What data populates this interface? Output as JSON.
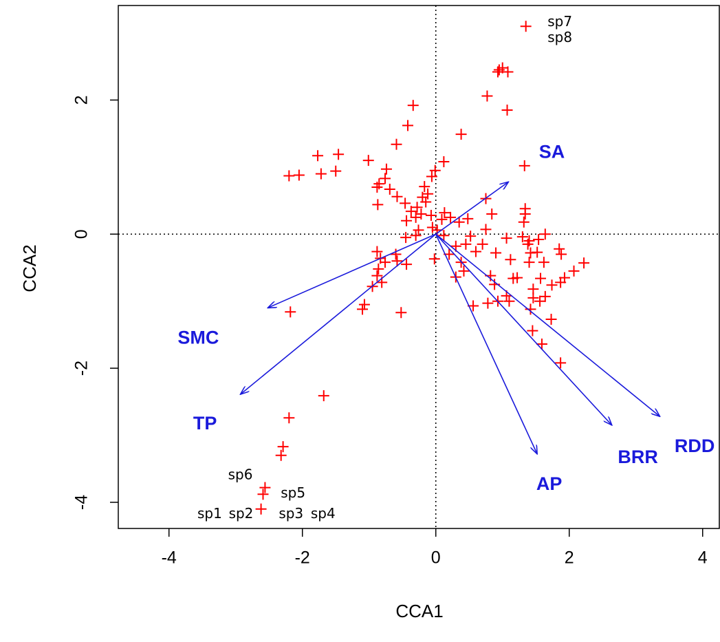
{
  "chart_data": {
    "type": "biplot",
    "x_label": "CCA1",
    "y_label": "CCA2",
    "xlim": [
      -4.76,
      4.25
    ],
    "ylim": [
      -4.39,
      3.41
    ],
    "xticks": [
      -4,
      -2,
      0,
      2,
      4
    ],
    "yticks": [
      -4,
      -2,
      0,
      2
    ],
    "zero_lines": true,
    "point_color": "#ff0000",
    "arrow_color": "#1a1adb",
    "points": {
      "x": [
        0.93,
        1.0,
        1.08,
        0.95,
        0.77,
        1.07,
        -0.34,
        -0.42,
        0.38,
        1.33,
        -0.59,
        -1.77,
        -1.46,
        -1.01,
        -1.5,
        -1.72,
        -2.2,
        -2.05,
        0.12,
        -0.01,
        -0.74,
        -0.76,
        -0.85,
        -0.88,
        -0.69,
        -0.06,
        -0.17,
        0.75,
        -0.58,
        -0.46,
        -0.87,
        -0.28,
        -0.2,
        -0.15,
        -0.12,
        -0.3,
        -0.22,
        -0.37,
        -0.44,
        -0.07,
        0.13,
        0.22,
        0.48,
        0.84,
        1.34,
        1.34,
        1.32,
        0.09,
        -0.05,
        0.35,
        -0.26,
        0.02,
        0.75,
        0.52,
        1.06,
        1.3,
        1.4,
        1.54,
        1.38,
        1.64,
        -0.45,
        -0.3,
        0.12,
        0.3,
        0.45,
        -0.6,
        -0.88,
        -0.83,
        -0.58,
        -0.76,
        -0.02,
        0.2,
        0.6,
        0.7,
        0.9,
        1.12,
        1.42,
        1.52,
        1.85,
        1.88,
        2.22,
        1.4,
        1.62,
        -0.86,
        -0.88,
        -0.81,
        -0.95,
        -0.44,
        0.38,
        0.42,
        0.3,
        0.82,
        0.88,
        1.16,
        1.22,
        1.57,
        1.93,
        2.07,
        1.87,
        1.74,
        1.06,
        1.1,
        1.46,
        1.64,
        1.46,
        0.78,
        0.93,
        0.56,
        -1.07,
        -1.1,
        -0.52,
        1.42,
        1.56,
        1.73,
        1.45,
        1.59,
        1.87,
        -2.18,
        -1.68,
        -2.2,
        -2.29,
        -2.32,
        1.35,
        -2.56,
        -2.59,
        -2.62
      ],
      "y": [
        2.42,
        2.48,
        2.42,
        2.45,
        2.06,
        1.85,
        1.92,
        1.62,
        1.49,
        1.02,
        1.34,
        1.17,
        1.19,
        1.1,
        0.94,
        0.9,
        0.87,
        0.88,
        1.08,
        0.95,
        0.97,
        0.83,
        0.75,
        0.7,
        0.67,
        0.86,
        0.71,
        0.53,
        0.56,
        0.46,
        0.44,
        0.4,
        0.55,
        0.48,
        0.6,
        0.25,
        0.3,
        0.34,
        0.2,
        0.28,
        0.32,
        0.25,
        0.23,
        0.3,
        0.38,
        0.3,
        0.18,
        0.22,
        0.1,
        0.18,
        0.06,
        0.06,
        0.07,
        -0.03,
        -0.06,
        -0.04,
        -0.1,
        -0.08,
        -0.15,
        0.0,
        -0.05,
        -0.02,
        -0.02,
        -0.18,
        -0.15,
        -0.3,
        -0.26,
        -0.36,
        -0.4,
        -0.42,
        -0.37,
        -0.3,
        -0.26,
        -0.15,
        -0.28,
        -0.38,
        -0.28,
        -0.27,
        -0.22,
        -0.3,
        -0.43,
        -0.42,
        -0.42,
        -0.52,
        -0.62,
        -0.72,
        -0.78,
        -0.45,
        -0.42,
        -0.55,
        -0.64,
        -0.62,
        -0.75,
        -0.66,
        -0.65,
        -0.66,
        -0.65,
        -0.55,
        -0.72,
        -0.76,
        -0.92,
        -1.0,
        -0.95,
        -0.93,
        -0.82,
        -1.03,
        -1.0,
        -1.07,
        -1.05,
        -1.12,
        -1.17,
        -1.12,
        -1.0,
        -1.27,
        -1.44,
        -1.64,
        -1.92,
        -1.16,
        -2.41,
        -2.74,
        -3.17,
        -3.3,
        3.1,
        -3.78,
        -3.88,
        -4.1
      ]
    },
    "arrows": [
      {
        "name": "SA",
        "x": 1.09,
        "y": 0.78,
        "label_x": 1.74,
        "label_y": 1.21
      },
      {
        "name": "SMC",
        "x": -2.52,
        "y": -1.1,
        "label_x": -3.56,
        "label_y": -1.56
      },
      {
        "name": "TP",
        "x": -2.93,
        "y": -2.39,
        "label_x": -3.46,
        "label_y": -2.84
      },
      {
        "name": "AP",
        "x": 1.52,
        "y": -3.28,
        "label_x": 1.7,
        "label_y": -3.74
      },
      {
        "name": "BRR",
        "x": 2.64,
        "y": -2.85,
        "label_x": 3.03,
        "label_y": -3.34
      },
      {
        "name": "RDD",
        "x": 3.36,
        "y": -2.72,
        "label_x": 3.88,
        "label_y": -3.18
      }
    ],
    "species_labels": [
      {
        "text": "sp7",
        "x": 1.86,
        "y": 3.16
      },
      {
        "text": "sp8",
        "x": 1.86,
        "y": 2.92
      },
      {
        "text": "sp6",
        "x": -2.93,
        "y": -3.6
      },
      {
        "text": "sp5",
        "x": -2.14,
        "y": -3.87
      },
      {
        "text": "sp1",
        "x": -3.39,
        "y": -4.18
      },
      {
        "text": "sp2",
        "x": -2.92,
        "y": -4.18
      },
      {
        "text": "sp3",
        "x": -2.17,
        "y": -4.18
      },
      {
        "text": "sp4",
        "x": -1.69,
        "y": -4.18
      }
    ]
  }
}
